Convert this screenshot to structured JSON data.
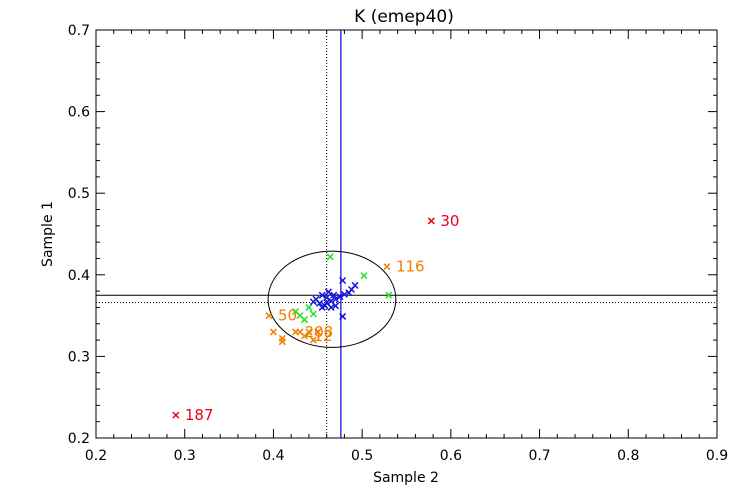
{
  "chart_data": {
    "type": "scatter",
    "title": "K (emep40)",
    "xlabel": "Sample 2",
    "ylabel": "Sample 1",
    "xlim": [
      0.2,
      0.9
    ],
    "ylim": [
      0.2,
      0.7
    ],
    "xticks": [
      "0.2",
      "0.3",
      "0.4",
      "0.5",
      "0.6",
      "0.7",
      "0.8",
      "0.9"
    ],
    "yticks": [
      "0.2",
      "0.3",
      "0.4",
      "0.5",
      "0.6",
      "0.7"
    ],
    "colors": {
      "red": "#e8001c",
      "orange": "#f07f00",
      "green": "#22e022",
      "blue": "#1515e0"
    },
    "reference_lines": {
      "vertical_solid_x": 0.476,
      "vertical_dotted_x": 0.46,
      "horizontal_solid_y": 0.375,
      "horizontal_dotted_y": 0.366
    },
    "ellipse": {
      "cx": 0.466,
      "cy": 0.37,
      "rx": 0.072,
      "ry": 0.059
    },
    "series": [
      {
        "color": "red",
        "points": [
          {
            "x": 0.578,
            "y": 0.466,
            "label": "30"
          },
          {
            "x": 0.29,
            "y": 0.228,
            "label": "187"
          }
        ]
      },
      {
        "color": "orange",
        "points": [
          {
            "x": 0.528,
            "y": 0.41,
            "label": "116"
          },
          {
            "x": 0.395,
            "y": 0.35,
            "label": "50"
          },
          {
            "x": 0.4,
            "y": 0.33
          },
          {
            "x": 0.41,
            "y": 0.322
          },
          {
            "x": 0.41,
            "y": 0.318
          },
          {
            "x": 0.425,
            "y": 0.33,
            "label": "208"
          },
          {
            "x": 0.43,
            "y": 0.33
          },
          {
            "x": 0.435,
            "y": 0.325,
            "label": "12"
          },
          {
            "x": 0.44,
            "y": 0.33
          },
          {
            "x": 0.445,
            "y": 0.32
          },
          {
            "x": 0.45,
            "y": 0.33
          }
        ]
      },
      {
        "color": "green",
        "points": [
          {
            "x": 0.464,
            "y": 0.422
          },
          {
            "x": 0.502,
            "y": 0.399
          },
          {
            "x": 0.53,
            "y": 0.375
          },
          {
            "x": 0.425,
            "y": 0.355
          },
          {
            "x": 0.43,
            "y": 0.35
          },
          {
            "x": 0.435,
            "y": 0.345
          },
          {
            "x": 0.445,
            "y": 0.352
          },
          {
            "x": 0.44,
            "y": 0.36
          }
        ]
      },
      {
        "color": "blue",
        "points": [
          {
            "x": 0.478,
            "y": 0.393
          },
          {
            "x": 0.462,
            "y": 0.379
          },
          {
            "x": 0.492,
            "y": 0.387
          },
          {
            "x": 0.488,
            "y": 0.382
          },
          {
            "x": 0.485,
            "y": 0.378
          },
          {
            "x": 0.48,
            "y": 0.376
          },
          {
            "x": 0.475,
            "y": 0.373
          },
          {
            "x": 0.47,
            "y": 0.37
          },
          {
            "x": 0.465,
            "y": 0.368
          },
          {
            "x": 0.46,
            "y": 0.366
          },
          {
            "x": 0.458,
            "y": 0.362
          },
          {
            "x": 0.455,
            "y": 0.36
          },
          {
            "x": 0.452,
            "y": 0.365
          },
          {
            "x": 0.448,
            "y": 0.37
          },
          {
            "x": 0.445,
            "y": 0.367
          },
          {
            "x": 0.465,
            "y": 0.36
          },
          {
            "x": 0.47,
            "y": 0.362
          },
          {
            "x": 0.468,
            "y": 0.375
          },
          {
            "x": 0.478,
            "y": 0.349
          },
          {
            "x": 0.46,
            "y": 0.372
          },
          {
            "x": 0.455,
            "y": 0.375
          }
        ]
      }
    ]
  }
}
